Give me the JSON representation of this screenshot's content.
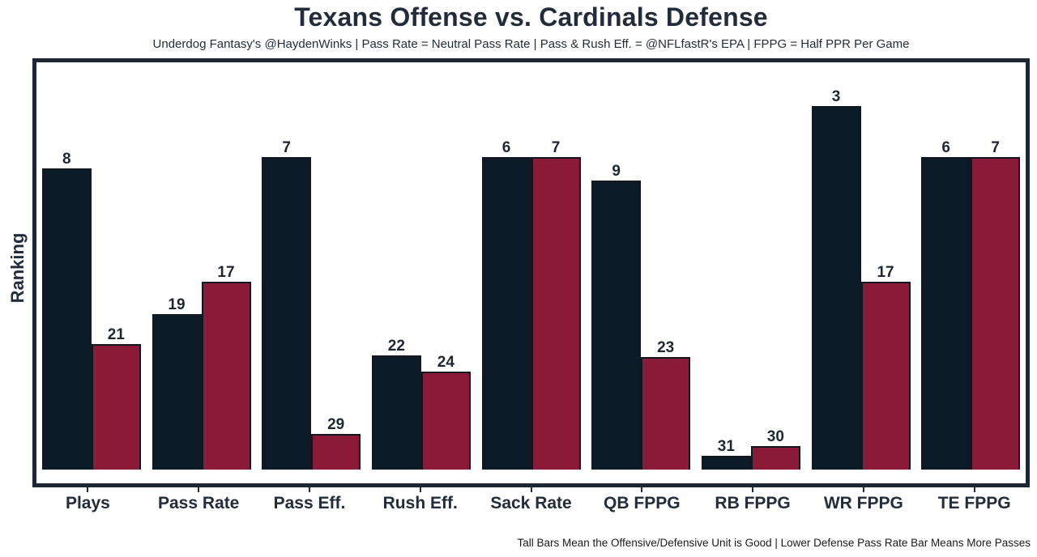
{
  "title": "Texans Offense vs. Cardinals Defense",
  "subtitle": "Underdog Fantasy's @HaydenWinks | Pass Rate = Neutral Pass Rate | Pass & Rush Eff. = @NFLfastR's EPA | FPPG = Half PPR Per Game",
  "ylabel": "Ranking",
  "footnote": "Tall Bars Mean the Offensive/Defensive Unit is Good | Lower Defense Pass Rate Bar Means More Passes",
  "colors": {
    "offense": "#0a1b27",
    "defense": "#8b1a39",
    "frame": "#1d2633",
    "text": "#232c3a"
  },
  "chart_data": {
    "type": "bar",
    "title": "Texans Offense vs. Cardinals Defense",
    "xlabel": "",
    "ylabel": "Ranking",
    "legend_position": "none",
    "grid": false,
    "categories": [
      "Plays",
      "Pass Rate",
      "Pass Eff.",
      "Rush Eff.",
      "Sack Rate",
      "QB FPPG",
      "RB FPPG",
      "WR FPPG",
      "TE FPPG"
    ],
    "series": [
      {
        "name": "Texans Offense",
        "color_key": "offense",
        "ranks": [
          8,
          19,
          7,
          22,
          6,
          9,
          31,
          3,
          6
        ],
        "bar_height_pct": [
          74.1,
          38.2,
          76.9,
          28.1,
          76.9,
          71.1,
          3.4,
          89.4,
          76.9
        ]
      },
      {
        "name": "Cardinals Defense",
        "color_key": "defense",
        "ranks": [
          21,
          17,
          29,
          24,
          7,
          23,
          30,
          17,
          7
        ],
        "bar_height_pct": [
          30.9,
          46.2,
          8.8,
          24.1,
          76.9,
          27.7,
          5.8,
          46.2,
          76.9
        ]
      }
    ]
  }
}
